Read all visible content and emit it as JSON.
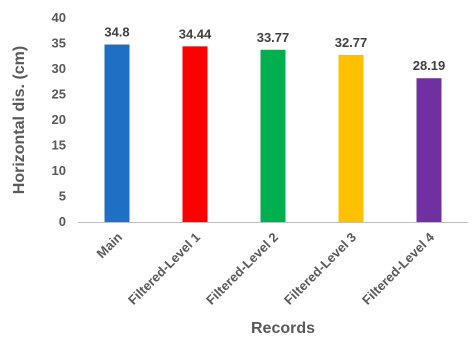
{
  "chart_data": {
    "type": "bar",
    "title": "",
    "xlabel": "Records",
    "ylabel": "Horizontal dis. (cm)",
    "ylim": [
      0,
      40
    ],
    "yticks": [
      0,
      5,
      10,
      15,
      20,
      25,
      30,
      35,
      40
    ],
    "grid": false,
    "categories": [
      "Main",
      "Filtered-Level 1",
      "Filtered-Level 2",
      "Filtered-Level 3",
      "Filtered-Level 4"
    ],
    "values": [
      34.8,
      34.44,
      33.77,
      32.77,
      28.19
    ],
    "data_labels": [
      "34.8",
      "34.44",
      "33.77",
      "32.77",
      "28.19"
    ],
    "colors": [
      "#1f6fc5",
      "#ff0000",
      "#00b050",
      "#ffc000",
      "#7030a0"
    ]
  }
}
